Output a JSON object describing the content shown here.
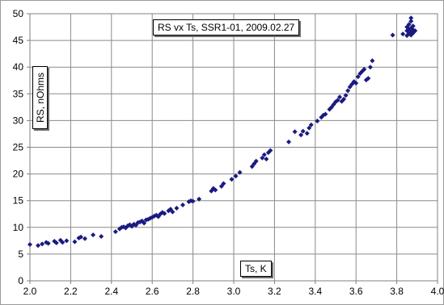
{
  "chart_data": {
    "type": "scatter",
    "title": "RS vx Ts, SSR1-01, 2009.02.27",
    "xlabel": "Ts, K",
    "ylabel": "RS, nOhms",
    "xlim": [
      2.0,
      4.0
    ],
    "ylim": [
      0,
      50
    ],
    "x_ticks": [
      "2.0",
      "2.2",
      "2.4",
      "2.6",
      "2.8",
      "3.0",
      "3.2",
      "3.4",
      "3.6",
      "3.8",
      "4.0"
    ],
    "y_ticks": [
      "0",
      "5",
      "10",
      "15",
      "20",
      "25",
      "30",
      "35",
      "40",
      "45",
      "50"
    ],
    "grid": true,
    "legend": "none",
    "marker_color": "#1a1a80",
    "series": [
      {
        "marker": "diamond",
        "points": [
          [
            2.0,
            6.8
          ],
          [
            2.04,
            6.6
          ],
          [
            2.06,
            6.9
          ],
          [
            2.08,
            7.2
          ],
          [
            2.09,
            7.0
          ],
          [
            2.12,
            7.4
          ],
          [
            2.13,
            7.1
          ],
          [
            2.15,
            7.6
          ],
          [
            2.16,
            7.2
          ],
          [
            2.18,
            7.5
          ],
          [
            2.22,
            7.3
          ],
          [
            2.24,
            8.0
          ],
          [
            2.25,
            8.2
          ],
          [
            2.27,
            7.9
          ],
          [
            2.31,
            8.6
          ],
          [
            2.35,
            8.3
          ],
          [
            2.42,
            9.2
          ],
          [
            2.44,
            9.7
          ],
          [
            2.45,
            10.0
          ],
          [
            2.46,
            10.1
          ],
          [
            2.47,
            9.9
          ],
          [
            2.48,
            10.3
          ],
          [
            2.49,
            10.5
          ],
          [
            2.5,
            10.2
          ],
          [
            2.51,
            10.6
          ],
          [
            2.52,
            10.4
          ],
          [
            2.53,
            10.9
          ],
          [
            2.54,
            11.0
          ],
          [
            2.55,
            11.2
          ],
          [
            2.56,
            10.8
          ],
          [
            2.57,
            11.4
          ],
          [
            2.58,
            11.5
          ],
          [
            2.59,
            11.7
          ],
          [
            2.6,
            11.9
          ],
          [
            2.61,
            12.1
          ],
          [
            2.62,
            12.3
          ],
          [
            2.63,
            12.0
          ],
          [
            2.64,
            12.5
          ],
          [
            2.65,
            12.8
          ],
          [
            2.66,
            12.6
          ],
          [
            2.68,
            13.1
          ],
          [
            2.69,
            13.4
          ],
          [
            2.7,
            12.9
          ],
          [
            2.72,
            13.6
          ],
          [
            2.75,
            14.2
          ],
          [
            2.78,
            14.8
          ],
          [
            2.79,
            15.0
          ],
          [
            2.8,
            14.9
          ],
          [
            2.83,
            15.3
          ],
          [
            2.89,
            16.8
          ],
          [
            2.9,
            17.3
          ],
          [
            2.91,
            17.0
          ],
          [
            2.94,
            17.7
          ],
          [
            2.95,
            18.2
          ],
          [
            2.99,
            19.0
          ],
          [
            3.01,
            19.6
          ],
          [
            3.03,
            20.3
          ],
          [
            3.09,
            21.4
          ],
          [
            3.1,
            21.9
          ],
          [
            3.11,
            22.4
          ],
          [
            3.14,
            23.0
          ],
          [
            3.15,
            23.6
          ],
          [
            3.16,
            22.8
          ],
          [
            3.17,
            24.0
          ],
          [
            3.18,
            24.4
          ],
          [
            3.27,
            26.0
          ],
          [
            3.3,
            27.9
          ],
          [
            3.33,
            27.3
          ],
          [
            3.34,
            28.0
          ],
          [
            3.36,
            27.6
          ],
          [
            3.37,
            28.6
          ],
          [
            3.38,
            29.2
          ],
          [
            3.41,
            29.9
          ],
          [
            3.43,
            30.6
          ],
          [
            3.44,
            31.0
          ],
          [
            3.45,
            31.2
          ],
          [
            3.47,
            32.1
          ],
          [
            3.48,
            32.5
          ],
          [
            3.49,
            33.0
          ],
          [
            3.5,
            33.5
          ],
          [
            3.51,
            33.8
          ],
          [
            3.52,
            34.4
          ],
          [
            3.53,
            33.6
          ],
          [
            3.54,
            34.0
          ],
          [
            3.55,
            34.7
          ],
          [
            3.56,
            35.6
          ],
          [
            3.57,
            36.3
          ],
          [
            3.58,
            36.8
          ],
          [
            3.59,
            37.3
          ],
          [
            3.6,
            37.0
          ],
          [
            3.61,
            38.2
          ],
          [
            3.62,
            38.8
          ],
          [
            3.63,
            39.2
          ],
          [
            3.64,
            39.6
          ],
          [
            3.65,
            37.6
          ],
          [
            3.66,
            37.9
          ],
          [
            3.67,
            40.0
          ],
          [
            3.68,
            41.2
          ],
          [
            3.78,
            46.0
          ],
          [
            3.83,
            46.2
          ],
          [
            3.85,
            45.9
          ],
          [
            3.85,
            46.8
          ],
          [
            3.85,
            47.5
          ],
          [
            3.86,
            46.3
          ],
          [
            3.86,
            47.1
          ],
          [
            3.86,
            48.0
          ],
          [
            3.87,
            46.0
          ],
          [
            3.87,
            46.6
          ],
          [
            3.87,
            47.3
          ],
          [
            3.87,
            48.6
          ],
          [
            3.87,
            49.2
          ],
          [
            3.88,
            46.4
          ],
          [
            3.88,
            47.0
          ],
          [
            3.88,
            47.7
          ],
          [
            3.89,
            46.8
          ]
        ]
      }
    ]
  }
}
